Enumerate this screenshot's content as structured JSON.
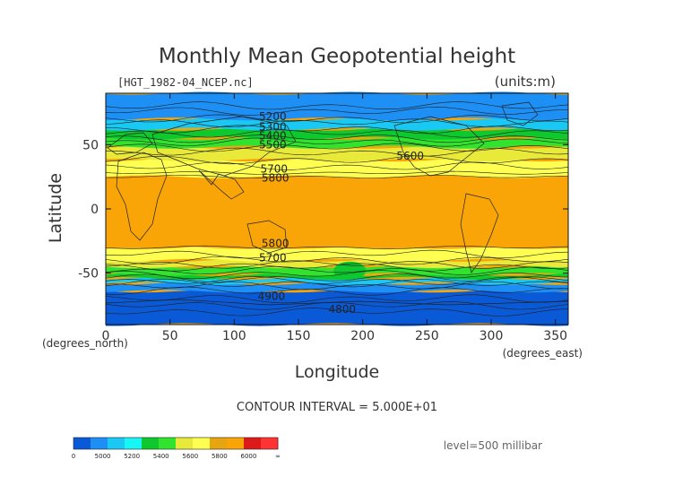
{
  "chart_data": {
    "type": "heatmap",
    "title": "Monthly Mean Geopotential height",
    "file_label": "[HGT_1982-04_NCEP.nc]",
    "units_label": "(units:m)",
    "xlabel": "Longitude",
    "ylabel": "Latitude",
    "xlim": [
      0,
      360
    ],
    "ylim": [
      -90,
      90
    ],
    "x_ticks": [
      0,
      50,
      100,
      150,
      200,
      250,
      300,
      350
    ],
    "y_ticks": [
      50,
      0,
      -50
    ],
    "x_unit_label": "(degrees_east)",
    "y_unit_label": "(degrees_north)",
    "contour_interval_label": "CONTOUR INTERVAL = 5.000E+01",
    "level_label": "level=500 millibar",
    "colorbar": {
      "colors": [
        "#0a5ad8",
        "#1e8ff4",
        "#19c8f3",
        "#17f5f5",
        "#0ec92d",
        "#32e32e",
        "#e9e939",
        "#ffff52",
        "#e7a512",
        "#f9a508",
        "#dd1a1a",
        "#ff3333"
      ],
      "labels": [
        "0",
        "5000",
        "5200",
        "5400",
        "5600",
        "5800",
        "6000",
        "∞"
      ]
    },
    "bands": [
      {
        "level": 4800,
        "lats": [
          -90,
          -64
        ],
        "color": "#0a5ad8"
      },
      {
        "level": 5000,
        "lats": [
          -64,
          -58
        ],
        "color": "#1e8ff4"
      },
      {
        "level": 5200,
        "lats": [
          -58,
          -54
        ],
        "color": "#19c8f3"
      },
      {
        "level": 5400,
        "lats": [
          -54,
          -51
        ],
        "color": "#0ec92d"
      },
      {
        "level": 5550,
        "lats": [
          -51,
          -45
        ],
        "color": "#32e32e"
      },
      {
        "level": 5700,
        "lats": [
          -45,
          -40
        ],
        "color": "#e9e939"
      },
      {
        "level": 5750,
        "lats": [
          -40,
          -30
        ],
        "color": "#ffff52"
      },
      {
        "level": 5850,
        "lats": [
          -30,
          25
        ],
        "color": "#f9a508"
      },
      {
        "level": 5750,
        "lats": [
          25,
          38
        ],
        "color": "#ffff52"
      },
      {
        "level": 5600,
        "lats": [
          38,
          48
        ],
        "color": "#e9e939"
      },
      {
        "level": 5500,
        "lats": [
          48,
          55
        ],
        "color": "#32e32e"
      },
      {
        "level": 5400,
        "lats": [
          55,
          62
        ],
        "color": "#0ec92d"
      },
      {
        "level": 5300,
        "lats": [
          62,
          70
        ],
        "color": "#19c8f3"
      },
      {
        "level": 5200,
        "lats": [
          70,
          90
        ],
        "color": "#1e8ff4"
      }
    ],
    "contour_labels": [
      {
        "text": "5200",
        "lon": 130,
        "lat": 72
      },
      {
        "text": "5300",
        "lon": 130,
        "lat": 64
      },
      {
        "text": "5400",
        "lon": 130,
        "lat": 57
      },
      {
        "text": "5500",
        "lon": 130,
        "lat": 50
      },
      {
        "text": "5600",
        "lon": 237,
        "lat": 41
      },
      {
        "text": "5700",
        "lon": 131,
        "lat": 31
      },
      {
        "text": "5800",
        "lon": 132,
        "lat": 24
      },
      {
        "text": "5800",
        "lon": 132,
        "lat": -27
      },
      {
        "text": "5700",
        "lon": 130,
        "lat": -38
      },
      {
        "text": "4900",
        "lon": 129,
        "lat": -68
      },
      {
        "text": "4800",
        "lon": 184,
        "lat": -78
      }
    ]
  }
}
